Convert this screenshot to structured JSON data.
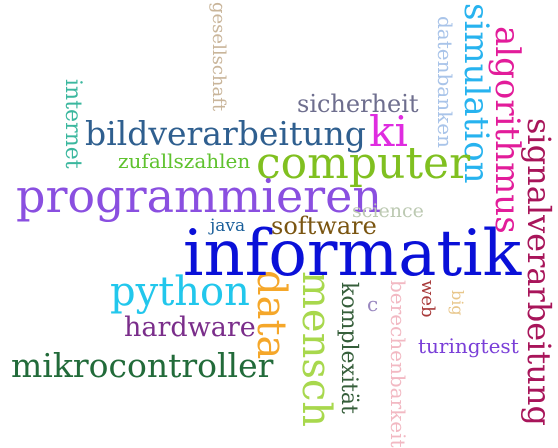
{
  "words": {
    "informatik": {
      "text": "informatik",
      "color": "#0a10d8"
    },
    "computer": {
      "text": "computer",
      "color": "#80c020"
    },
    "programmieren": {
      "text": "programmieren",
      "color": "#8a4fe0"
    },
    "python": {
      "text": "python",
      "color": "#22c7ec"
    },
    "bildverarbeitung": {
      "text": "bildverarbeitung",
      "color": "#2f5f8f"
    },
    "mikrocontroller": {
      "text": "mikrocontroller",
      "color": "#226b3a"
    },
    "simulation": {
      "text": "simulation",
      "color": "#27b3ef"
    },
    "algorithmus": {
      "text": "algorithmus",
      "color": "#e21c9a"
    },
    "signalverarbeitung": {
      "text": "signalverarbeitung",
      "color": "#a8155a"
    },
    "ki": {
      "text": "ki",
      "color": "#df2ce0"
    },
    "data": {
      "text": "data",
      "color": "#f5a72a"
    },
    "mensch": {
      "text": "mensch",
      "color": "#a8d84d"
    },
    "komplexitaet": {
      "text": "komplexität",
      "color": "#355e3a"
    },
    "hardware": {
      "text": "hardware",
      "color": "#7a2d8a"
    },
    "software": {
      "text": "software",
      "color": "#7a5511"
    },
    "sicherheit": {
      "text": "sicherheit",
      "color": "#6e6e8e"
    },
    "zufallszahlen": {
      "text": "zufallszahlen",
      "color": "#5fc22e"
    },
    "internet": {
      "text": "internet",
      "color": "#3bb79e"
    },
    "gesellschaft": {
      "text": "gesellschaft",
      "color": "#c9b59a"
    },
    "datenbanken": {
      "text": "datenbanken",
      "color": "#a9c4e9"
    },
    "science": {
      "text": "science",
      "color": "#bcc9b2"
    },
    "java": {
      "text": "java",
      "color": "#1a5f9a"
    },
    "turingtest": {
      "text": "turingtest",
      "color": "#7a3fd8"
    },
    "berechenbarkeit": {
      "text": "berechenbarkeit",
      "color": "#f2b9c3"
    },
    "web": {
      "text": "web",
      "color": "#a83a3a"
    },
    "big": {
      "text": "big",
      "color": "#e8c68a"
    },
    "c": {
      "text": "c",
      "color": "#9a88c0"
    }
  }
}
